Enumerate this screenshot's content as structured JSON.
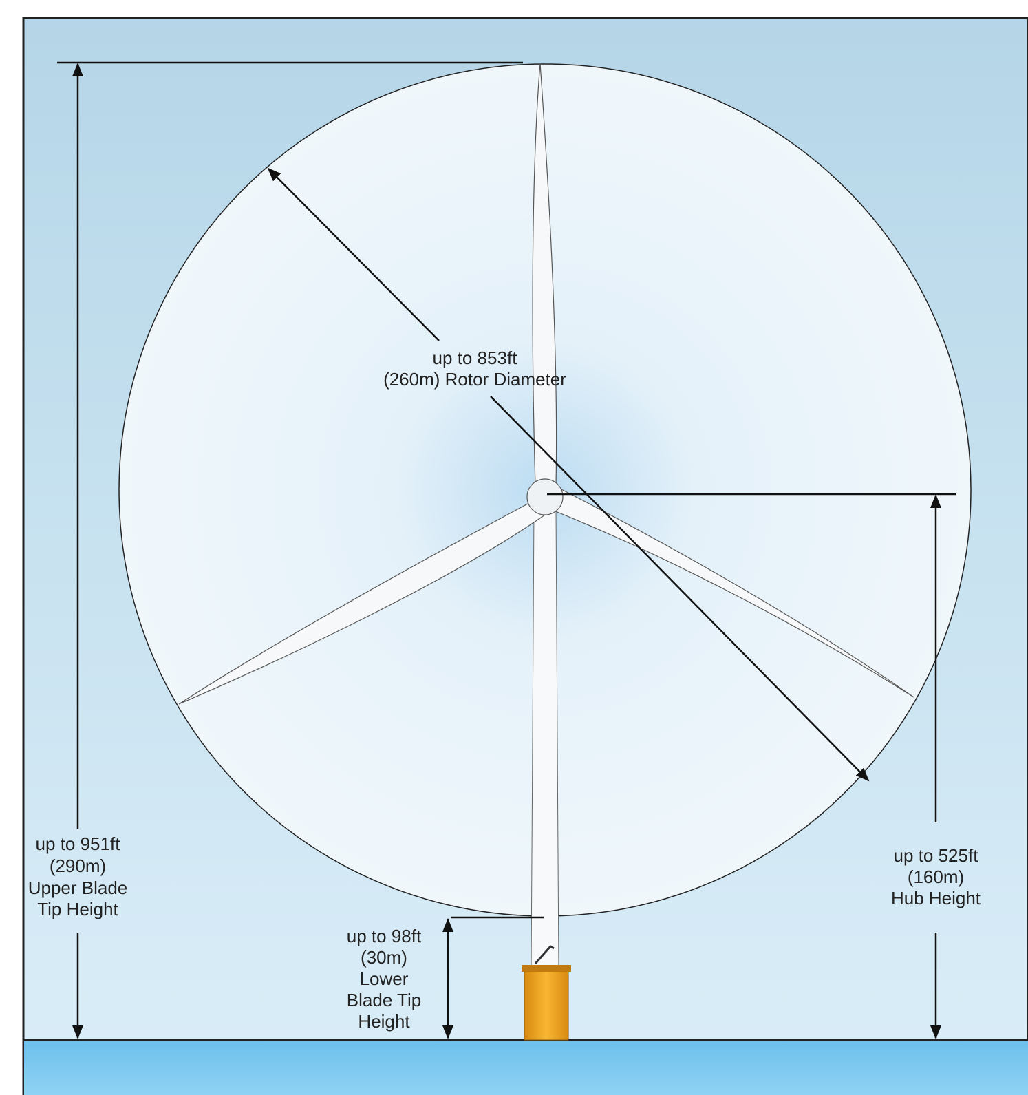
{
  "rotor_diameter": {
    "lines": [
      "up to 853ft",
      "(260m) Rotor Diameter"
    ]
  },
  "upper_tip_height": {
    "lines": [
      "up to 951ft",
      "(290m)",
      "Upper Blade",
      "Tip Height"
    ]
  },
  "hub_height": {
    "lines": [
      "up to 525ft",
      "(160m)",
      "Hub Height"
    ]
  },
  "lower_tip_height": {
    "lines": [
      "up to 98ft",
      "(30m)",
      "Lower",
      "Blade Tip",
      "Height"
    ]
  }
}
